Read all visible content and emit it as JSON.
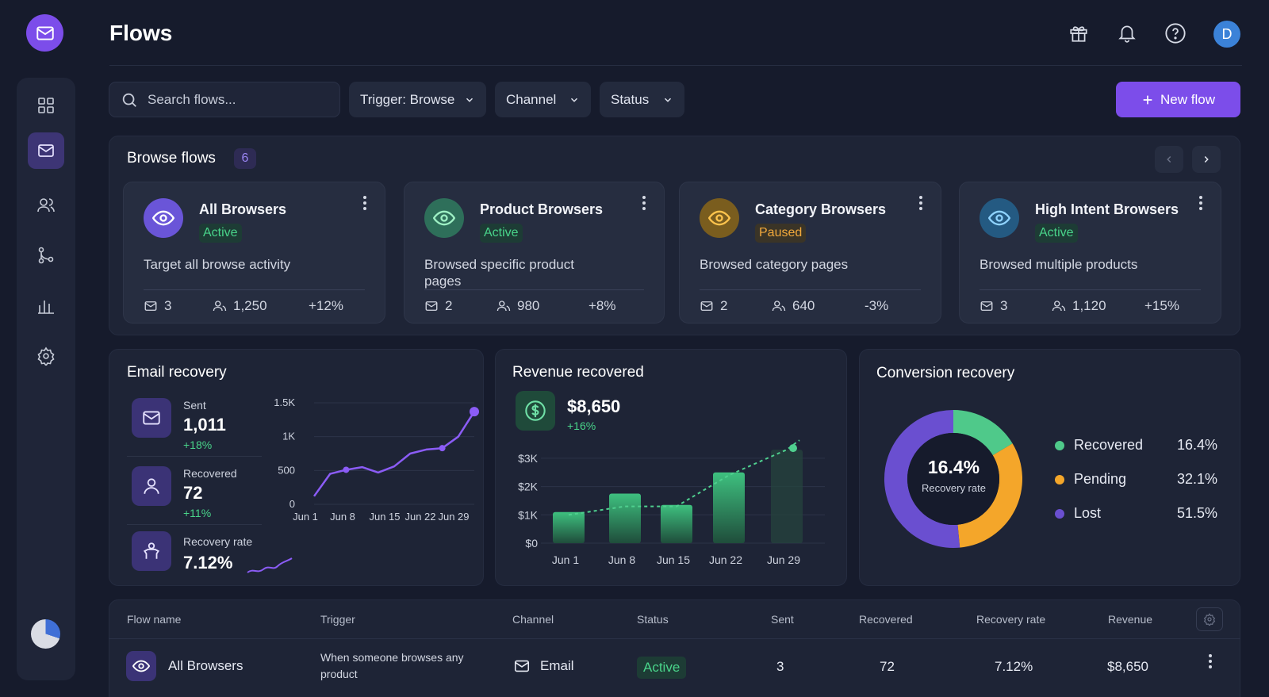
{
  "header": {
    "title": "Flows",
    "avatar_initial": "D"
  },
  "toolbar": {
    "search_placeholder": "Search flows...",
    "filters": [
      "Trigger: Browse",
      "Channel",
      "Status"
    ],
    "new_flow_label": "New flow"
  },
  "browse": {
    "title": "Browse flows",
    "count": "6",
    "cards": [
      {
        "name": "All Browsers",
        "status": "Active",
        "desc": "Target all browse activity",
        "emails": "3",
        "users": "1,250",
        "change": "+12%"
      },
      {
        "name": "Product Browsers",
        "status": "Active",
        "desc": "Browsed specific product pages",
        "emails": "2",
        "users": "980",
        "change": "+8%"
      },
      {
        "name": "Category Browsers",
        "status": "Paused",
        "desc": "Browsed category pages",
        "emails": "2",
        "users": "640",
        "change": "-3%"
      },
      {
        "name": "High Intent Browsers",
        "status": "Active",
        "desc": "Browsed multiple products",
        "emails": "3",
        "users": "1,120",
        "change": "+15%"
      }
    ]
  },
  "email_recovery": {
    "title": "Email recovery",
    "stats": [
      {
        "label": "Sent",
        "value": "1,011",
        "change": "+18%"
      },
      {
        "label": "Recovered",
        "value": "72",
        "change": "+11%"
      },
      {
        "label": "Recovery rate",
        "value": "7.12%"
      }
    ]
  },
  "revenue": {
    "title": "Revenue recovered",
    "value": "$8,650",
    "change": "+16%"
  },
  "conversion": {
    "title": "Conversion recovery",
    "center_value": "16.4%",
    "center_label": "Recovery rate"
  },
  "chart_data": [
    {
      "type": "line",
      "x": [
        "Jun 1",
        "Jun 4",
        "Jun 8",
        "Jun 10",
        "Jun 13",
        "Jun 15",
        "Jun 18",
        "Jun 21",
        "Jun 22",
        "Jun 25",
        "Jun 29"
      ],
      "x_tick_labels": [
        "Jun 1",
        "Jun 8",
        "Jun 15",
        "Jun 22",
        "Jun 29"
      ],
      "values": [
        120,
        450,
        510,
        550,
        470,
        560,
        750,
        810,
        830,
        1000,
        1370
      ],
      "y_tick_labels": [
        "1.5K",
        "1K",
        "500",
        "0"
      ],
      "ylim": [
        0,
        1500
      ],
      "color": "#8b5cf6"
    },
    {
      "type": "bar",
      "categories": [
        "Jun 1",
        "Jun 8",
        "Jun 15",
        "Jun 22",
        "Jun 29"
      ],
      "values": [
        1100,
        1750,
        1350,
        2500,
        3300
      ],
      "line_values": [
        1000,
        1300,
        1300,
        2400,
        3300
      ],
      "y_tick_labels": [
        "$3K",
        "$2K",
        "$1K",
        "$0"
      ],
      "ylim": [
        0,
        3500
      ],
      "color": "#3ec07f"
    },
    {
      "type": "pie",
      "labels": [
        "Recovered",
        "Pending",
        "Lost"
      ],
      "values": [
        16.4,
        32.1,
        51.5
      ],
      "value_labels": [
        "16.4%",
        "32.1%",
        "51.5%"
      ],
      "colors": [
        "#4fc98a",
        "#f4a62a",
        "#6a4fd0"
      ]
    }
  ],
  "table": {
    "headers": [
      "Flow name",
      "Trigger",
      "Channel",
      "Status",
      "Sent",
      "Recovered",
      "Recovery rate",
      "Revenue"
    ],
    "rows": [
      {
        "name": "All Browsers",
        "trigger": "When someone browses any product",
        "channel": "Email",
        "status": "Active",
        "sent": "3",
        "recovered": "72",
        "rate": "7.12%",
        "revenue": "$8,650"
      }
    ]
  }
}
